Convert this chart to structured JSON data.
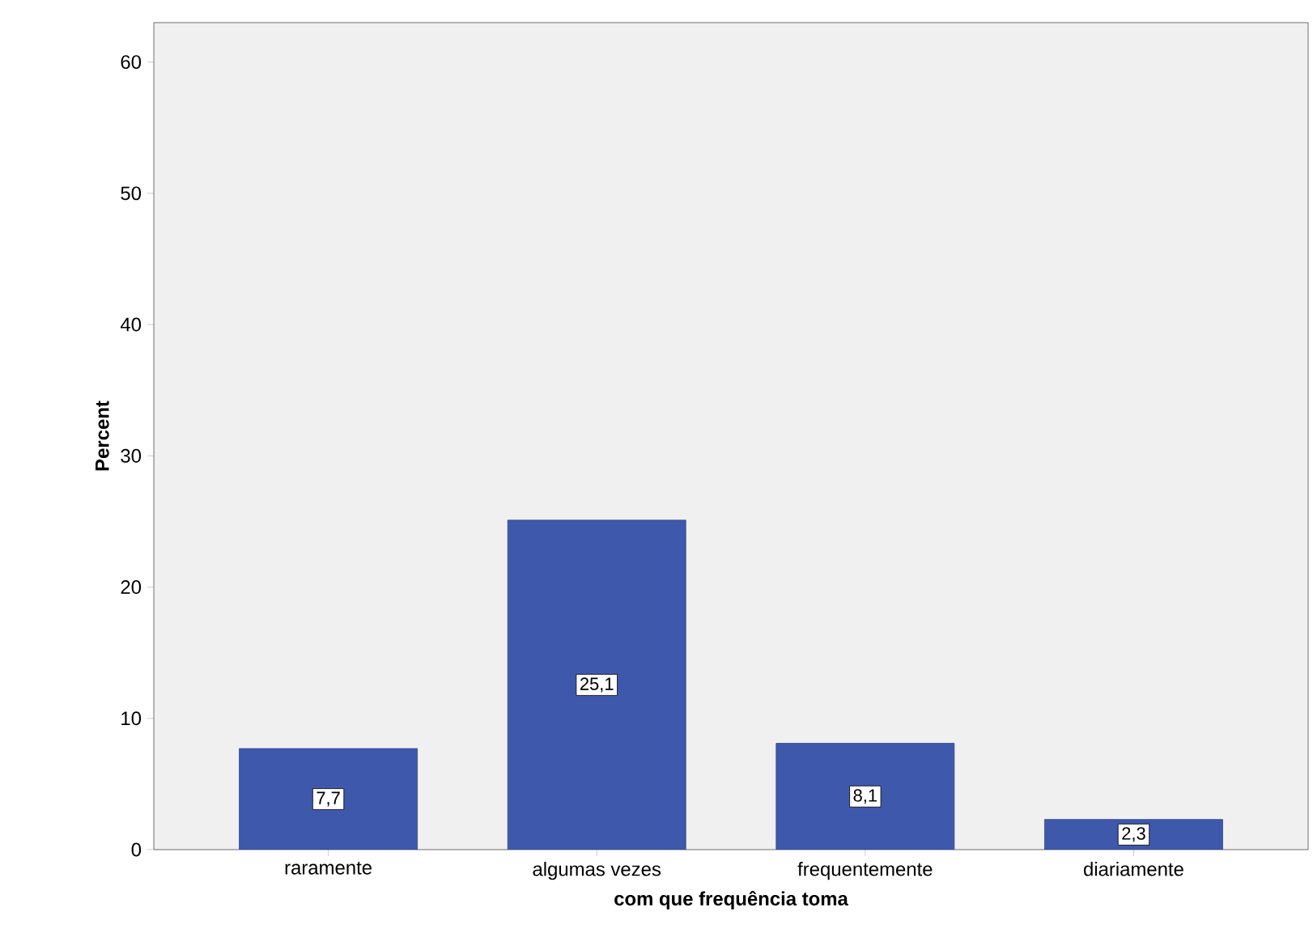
{
  "chart_data": {
    "type": "bar",
    "xlabel": "com que frequência toma",
    "ylabel": "Percent",
    "categories": [
      "raramente",
      "algumas vezes",
      "frequentemente",
      "diariamente"
    ],
    "values": [
      7.7,
      25.1,
      8.1,
      2.3
    ],
    "value_labels": [
      "7,7",
      "25,1",
      "8,1",
      "2,3"
    ],
    "color": "#3e58ac",
    "ylim": [
      0,
      63
    ],
    "yticks": [
      0,
      10,
      20,
      30,
      40,
      50,
      60
    ]
  }
}
